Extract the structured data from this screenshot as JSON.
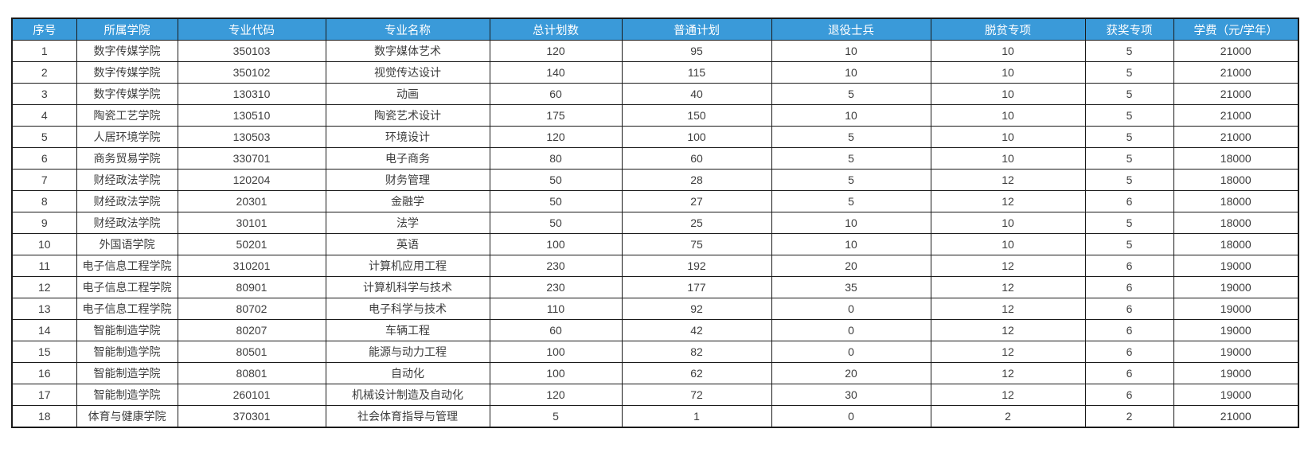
{
  "table": {
    "columns": [
      "序号",
      "所属学院",
      "专业代码",
      "专业名称",
      "总计划数",
      "普通计划",
      "退役士兵",
      "脱贫专项",
      "获奖专项",
      "学费（元/学年）"
    ],
    "rows": [
      [
        "1",
        "数字传媒学院",
        "350103",
        "数字媒体艺术",
        "120",
        "95",
        "10",
        "10",
        "5",
        "21000"
      ],
      [
        "2",
        "数字传媒学院",
        "350102",
        "视觉传达设计",
        "140",
        "115",
        "10",
        "10",
        "5",
        "21000"
      ],
      [
        "3",
        "数字传媒学院",
        "130310",
        "动画",
        "60",
        "40",
        "5",
        "10",
        "5",
        "21000"
      ],
      [
        "4",
        "陶瓷工艺学院",
        "130510",
        "陶瓷艺术设计",
        "175",
        "150",
        "10",
        "10",
        "5",
        "21000"
      ],
      [
        "5",
        "人居环境学院",
        "130503",
        "环境设计",
        "120",
        "100",
        "5",
        "10",
        "5",
        "21000"
      ],
      [
        "6",
        "商务贸易学院",
        "330701",
        "电子商务",
        "80",
        "60",
        "5",
        "10",
        "5",
        "18000"
      ],
      [
        "7",
        "财经政法学院",
        "120204",
        "财务管理",
        "50",
        "28",
        "5",
        "12",
        "5",
        "18000"
      ],
      [
        "8",
        "财经政法学院",
        "20301",
        "金融学",
        "50",
        "27",
        "5",
        "12",
        "6",
        "18000"
      ],
      [
        "9",
        "财经政法学院",
        "30101",
        "法学",
        "50",
        "25",
        "10",
        "10",
        "5",
        "18000"
      ],
      [
        "10",
        "外国语学院",
        "50201",
        "英语",
        "100",
        "75",
        "10",
        "10",
        "5",
        "18000"
      ],
      [
        "11",
        "电子信息工程学院",
        "310201",
        "计算机应用工程",
        "230",
        "192",
        "20",
        "12",
        "6",
        "19000"
      ],
      [
        "12",
        "电子信息工程学院",
        "80901",
        "计算机科学与技术",
        "230",
        "177",
        "35",
        "12",
        "6",
        "19000"
      ],
      [
        "13",
        "电子信息工程学院",
        "80702",
        "电子科学与技术",
        "110",
        "92",
        "0",
        "12",
        "6",
        "19000"
      ],
      [
        "14",
        "智能制造学院",
        "80207",
        "车辆工程",
        "60",
        "42",
        "0",
        "12",
        "6",
        "19000"
      ],
      [
        "15",
        "智能制造学院",
        "80501",
        "能源与动力工程",
        "100",
        "82",
        "0",
        "12",
        "6",
        "19000"
      ],
      [
        "16",
        "智能制造学院",
        "80801",
        "自动化",
        "100",
        "62",
        "20",
        "12",
        "6",
        "19000"
      ],
      [
        "17",
        "智能制造学院",
        "260101",
        "机械设计制造及自动化",
        "120",
        "72",
        "30",
        "12",
        "6",
        "19000"
      ],
      [
        "18",
        "体育与健康学院",
        "370301",
        "社会体育指导与管理",
        "5",
        "1",
        "0",
        "2",
        "2",
        "21000"
      ]
    ]
  },
  "colors": {
    "header_bg": "#3a9ad9",
    "header_text": "#ffffff",
    "border": "#1a1a1a",
    "cell_text": "#3d3d3d"
  }
}
